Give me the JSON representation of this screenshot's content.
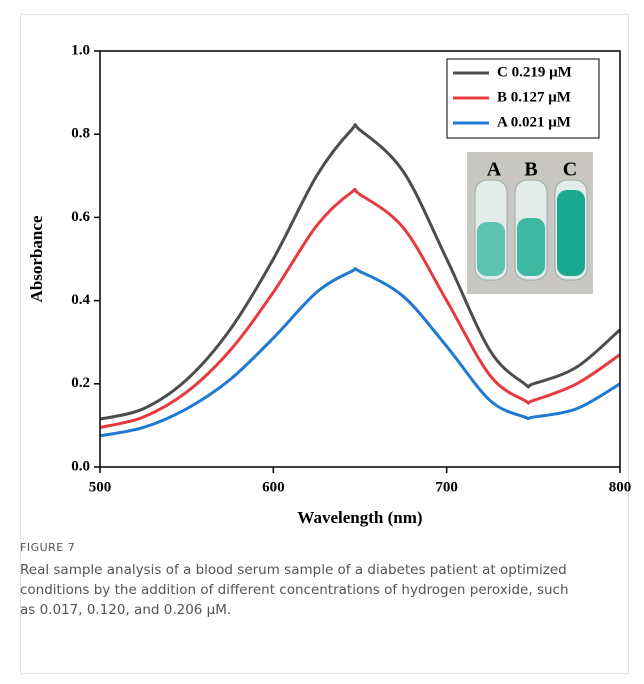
{
  "chart_data": {
    "type": "line",
    "xlabel": "Wavelength (nm)",
    "ylabel": "Absorbance",
    "x": [
      500,
      525,
      550,
      575,
      600,
      625,
      645,
      650,
      675,
      700,
      725,
      745,
      750,
      775,
      800
    ],
    "series": [
      {
        "name": "C 0.219 μM",
        "color": "#4d4d4d",
        "values": [
          0.115,
          0.14,
          0.21,
          0.33,
          0.5,
          0.7,
          0.81,
          0.81,
          0.71,
          0.5,
          0.28,
          0.2,
          0.2,
          0.24,
          0.33
        ]
      },
      {
        "name": "B 0.127 μM",
        "color": "#e8393f",
        "values": [
          0.095,
          0.12,
          0.18,
          0.28,
          0.42,
          0.58,
          0.66,
          0.655,
          0.575,
          0.4,
          0.22,
          0.16,
          0.16,
          0.2,
          0.27
        ]
      },
      {
        "name": "A 0.021 μM",
        "color": "#1f78d1",
        "values": [
          0.075,
          0.095,
          0.14,
          0.21,
          0.31,
          0.42,
          0.47,
          0.47,
          0.41,
          0.29,
          0.16,
          0.12,
          0.12,
          0.14,
          0.2
        ]
      }
    ],
    "xlim": [
      500,
      800
    ],
    "xticks": [
      500,
      600,
      700,
      800
    ],
    "ylim": [
      0,
      1
    ],
    "yticks": [
      {
        "value": 0,
        "label": "0.0"
      },
      0.2,
      0.4,
      0.6,
      0.8,
      {
        "value": 1,
        "label": "1.0"
      }
    ],
    "legend": "upper right",
    "inset_labels": [
      "A",
      "B",
      "C"
    ]
  },
  "caption": {
    "label": "FIGURE 7",
    "text": "Real sample analysis of a blood serum sample of a diabetes patient at optimized conditions by the addition of different concentrations of hydrogen peroxide, such as 0.017, 0.120, and 0.206 μM."
  }
}
